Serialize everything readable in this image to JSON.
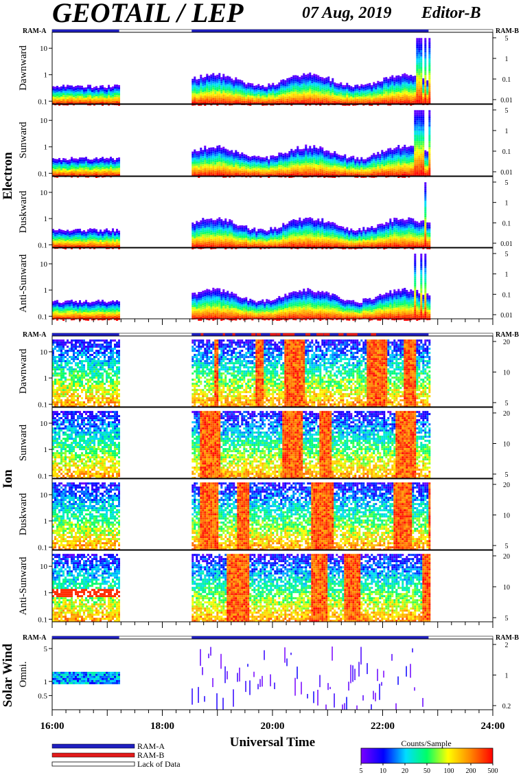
{
  "header": {
    "title": "GEOTAIL / LEP",
    "date": "07 Aug, 2019",
    "editor": "Editor-B"
  },
  "groups": [
    {
      "label": "Electron",
      "ram_left": "RAM-A",
      "ram_right": "RAM-B"
    },
    {
      "label": "Ion",
      "ram_left": "RAM-A",
      "ram_right": "RAM-B"
    },
    {
      "label": "Solar Wind",
      "ram_left": "RAM-A",
      "ram_right": "RAM-B"
    }
  ],
  "x_axis": {
    "label": "Universal Time",
    "ticks": [
      "16:00",
      "18:00",
      "20:00",
      "22:00",
      "24:00"
    ]
  },
  "legend": {
    "items": [
      {
        "label": "RAM-A",
        "color": "#1f1fbf"
      },
      {
        "label": "RAM-B",
        "color": "#e21b1b"
      },
      {
        "label": "Lack of Data",
        "color": "#ffffff"
      }
    ]
  },
  "colorbar": {
    "title": "Counts/Sample",
    "ticks": [
      "5",
      "10",
      "20",
      "50",
      "100",
      "200",
      "500"
    ]
  },
  "chart_data": [
    {
      "type": "heatmap",
      "group": "Electron",
      "panel_label": "Dawnward",
      "x": {
        "min_hour": 16,
        "max_hour": 24
      },
      "yleft": {
        "ticks": [
          "0.1",
          "1",
          "10"
        ],
        "scale": "log",
        "range": [
          0.08,
          40
        ]
      },
      "yright": {
        "ticks": [
          "0.01",
          "0.1",
          "1",
          "5"
        ]
      },
      "coverage": [
        [
          "16:00",
          "17:13"
        ],
        [
          "18:32",
          "22:50"
        ]
      ]
    },
    {
      "type": "heatmap",
      "group": "Electron",
      "panel_label": "Sunward",
      "x": {
        "min_hour": 16,
        "max_hour": 24
      },
      "yleft": {
        "ticks": [
          "0.1",
          "1",
          "10"
        ],
        "scale": "log",
        "range": [
          0.08,
          40
        ]
      },
      "yright": {
        "ticks": [
          "0.01",
          "0.1",
          "1",
          "5"
        ]
      },
      "coverage": [
        [
          "16:00",
          "17:13"
        ],
        [
          "18:32",
          "22:50"
        ]
      ]
    },
    {
      "type": "heatmap",
      "group": "Electron",
      "panel_label": "Duskward",
      "x": {
        "min_hour": 16,
        "max_hour": 24
      },
      "yleft": {
        "ticks": [
          "0.1",
          "1",
          "10"
        ],
        "scale": "log",
        "range": [
          0.08,
          40
        ]
      },
      "yright": {
        "ticks": [
          "0.01",
          "0.1",
          "1",
          "5"
        ]
      },
      "coverage": [
        [
          "16:00",
          "17:13"
        ],
        [
          "18:32",
          "22:50"
        ]
      ]
    },
    {
      "type": "heatmap",
      "group": "Electron",
      "panel_label": "Anti-Sunward",
      "x": {
        "min_hour": 16,
        "max_hour": 24
      },
      "yleft": {
        "ticks": [
          "0.1",
          "1",
          "10"
        ],
        "scale": "log",
        "range": [
          0.08,
          40
        ]
      },
      "yright": {
        "ticks": [
          "0.01",
          "0.1",
          "1",
          "5"
        ]
      },
      "coverage": [
        [
          "16:00",
          "17:13"
        ],
        [
          "18:32",
          "22:50"
        ]
      ]
    },
    {
      "type": "heatmap",
      "group": "Ion",
      "panel_label": "Dawnward",
      "x": {
        "min_hour": 16,
        "max_hour": 24
      },
      "yleft": {
        "ticks": [
          "0.1",
          "1",
          "10"
        ],
        "scale": "log",
        "range": [
          0.08,
          40
        ]
      },
      "yright": {
        "ticks": [
          "5",
          "10",
          "20"
        ]
      },
      "coverage": [
        [
          "16:00",
          "17:13"
        ],
        [
          "18:32",
          "22:50"
        ]
      ]
    },
    {
      "type": "heatmap",
      "group": "Ion",
      "panel_label": "Sunward",
      "x": {
        "min_hour": 16,
        "max_hour": 24
      },
      "yleft": {
        "ticks": [
          "0.1",
          "1",
          "10"
        ],
        "scale": "log",
        "range": [
          0.08,
          40
        ]
      },
      "yright": {
        "ticks": [
          "5",
          "10",
          "20"
        ]
      },
      "coverage": [
        [
          "16:00",
          "17:13"
        ],
        [
          "18:32",
          "22:50"
        ]
      ]
    },
    {
      "type": "heatmap",
      "group": "Ion",
      "panel_label": "Duskward",
      "x": {
        "min_hour": 16,
        "max_hour": 24
      },
      "yleft": {
        "ticks": [
          "0.1",
          "1",
          "10"
        ],
        "scale": "log",
        "range": [
          0.08,
          40
        ]
      },
      "yright": {
        "ticks": [
          "5",
          "10",
          "20"
        ]
      },
      "coverage": [
        [
          "16:00",
          "17:13"
        ],
        [
          "18:32",
          "22:50"
        ]
      ]
    },
    {
      "type": "heatmap",
      "group": "Ion",
      "panel_label": "Anti-Sunward",
      "x": {
        "min_hour": 16,
        "max_hour": 24
      },
      "yleft": {
        "ticks": [
          "0.1",
          "1",
          "10"
        ],
        "scale": "log",
        "range": [
          0.08,
          40
        ]
      },
      "yright": {
        "ticks": [
          "5",
          "10",
          "20"
        ]
      },
      "coverage": [
        [
          "16:00",
          "17:13"
        ],
        [
          "18:32",
          "22:50"
        ]
      ]
    },
    {
      "type": "heatmap",
      "group": "Solar Wind",
      "panel_label": "Omni.",
      "x": {
        "min_hour": 16,
        "max_hour": 24
      },
      "yleft": {
        "ticks": [
          "0.5",
          "1",
          "5"
        ],
        "scale": "log",
        "range": [
          0.25,
          8
        ]
      },
      "yright": {
        "ticks": [
          "0.2",
          "1",
          "2"
        ]
      },
      "coverage": [
        [
          "16:00",
          "17:13"
        ],
        [
          "18:32",
          "22:50"
        ]
      ]
    }
  ]
}
